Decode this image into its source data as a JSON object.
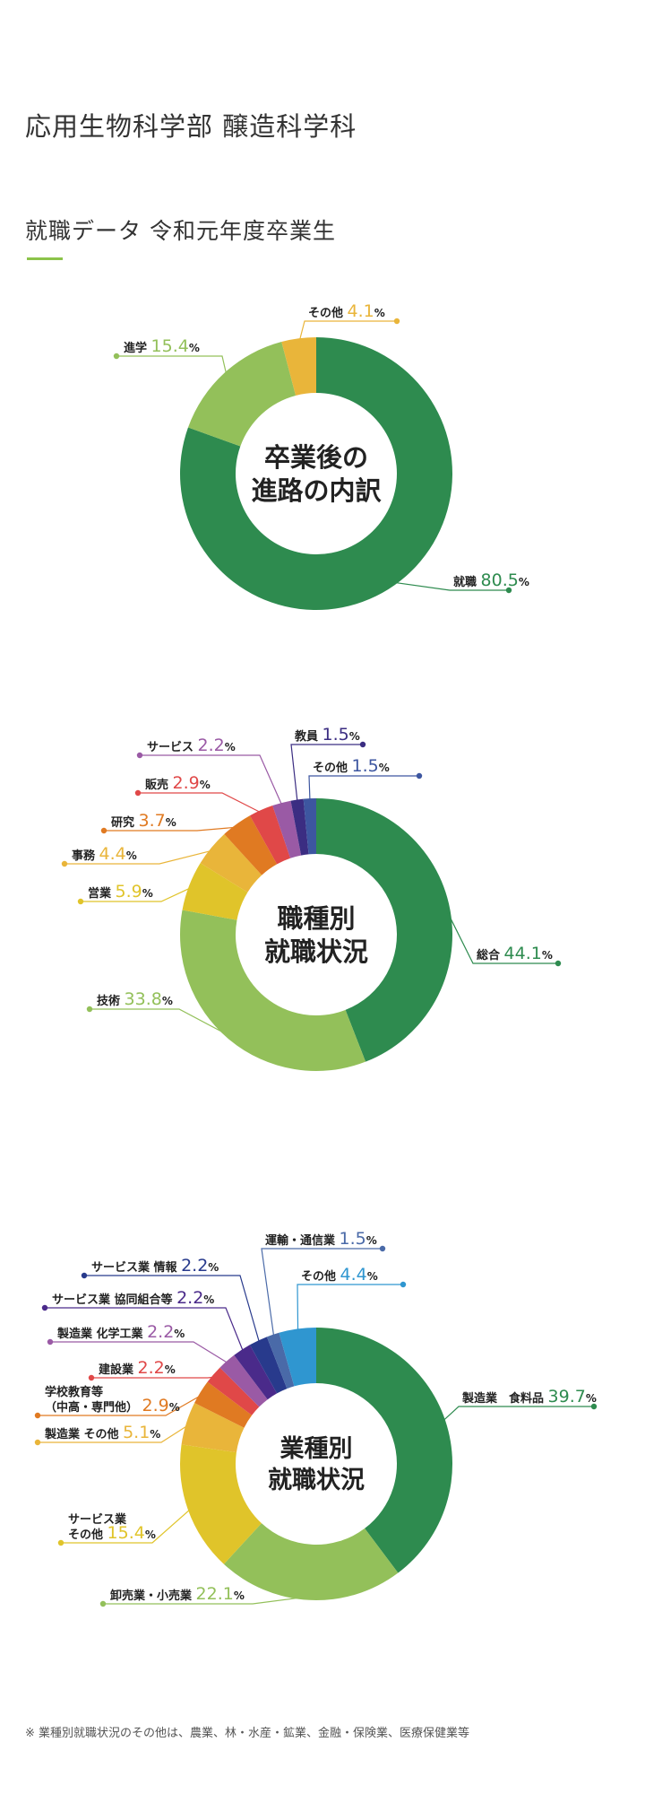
{
  "page": {
    "title": "応用生物科学部 醸造科学科",
    "section_title": "就職データ 令和元年度卒業生",
    "footnote": "※ 業種別就職状況のその他は、農業、林・水産・鉱業、金融・保険業、医療保健業等"
  },
  "chart_data": [
    {
      "type": "pie",
      "center_label": [
        "卒業後の",
        "進路の内訳"
      ],
      "unit": "%",
      "slices": [
        {
          "label": [
            "就職"
          ],
          "value": 80.5,
          "color": "#2e8b4f"
        },
        {
          "label": [
            "進学"
          ],
          "value": 15.4,
          "color": "#93c05a"
        },
        {
          "label": [
            "その他"
          ],
          "value": 4.1,
          "color": "#e9b53a"
        }
      ]
    },
    {
      "type": "pie",
      "center_label": [
        "職種別",
        "就職状況"
      ],
      "unit": "%",
      "slices": [
        {
          "label": [
            "総合"
          ],
          "value": 44.1,
          "color": "#2e8b4f"
        },
        {
          "label": [
            "技術"
          ],
          "value": 33.8,
          "color": "#93c05a"
        },
        {
          "label": [
            "営業"
          ],
          "value": 5.9,
          "color": "#e0c42a"
        },
        {
          "label": [
            "事務"
          ],
          "value": 4.4,
          "color": "#e9b53a"
        },
        {
          "label": [
            "研究"
          ],
          "value": 3.7,
          "color": "#e07a22"
        },
        {
          "label": [
            "販売"
          ],
          "value": 2.9,
          "color": "#e04848"
        },
        {
          "label": [
            "サービス"
          ],
          "value": 2.2,
          "color": "#9a5aa5"
        },
        {
          "label": [
            "教員"
          ],
          "value": 1.5,
          "color": "#3b2d82"
        },
        {
          "label": [
            "その他"
          ],
          "value": 1.5,
          "color": "#3d56a0"
        }
      ]
    },
    {
      "type": "pie",
      "center_label": [
        "業種別",
        "就職状況"
      ],
      "unit": "%",
      "slices": [
        {
          "label": [
            "製造業　食料品"
          ],
          "value": 39.7,
          "color": "#2e8b4f"
        },
        {
          "label": [
            "卸売業・小売業"
          ],
          "value": 22.1,
          "color": "#93c05a"
        },
        {
          "label": [
            "サービス業",
            "その他"
          ],
          "value": 15.4,
          "color": "#e0c42a"
        },
        {
          "label": [
            "製造業 その他"
          ],
          "value": 5.1,
          "color": "#e9b53a"
        },
        {
          "label": [
            "学校教育等",
            "（中高・専門他）"
          ],
          "value": 2.9,
          "color": "#e07a22"
        },
        {
          "label": [
            "建設業"
          ],
          "value": 2.2,
          "color": "#e04848"
        },
        {
          "label": [
            "製造業 化学工業"
          ],
          "value": 2.2,
          "color": "#9a5aa5"
        },
        {
          "label": [
            "サービス業 協同組合等"
          ],
          "value": 2.2,
          "color": "#4a2a8a"
        },
        {
          "label": [
            "サービス業 情報"
          ],
          "value": 2.2,
          "color": "#283a8c"
        },
        {
          "label": [
            "運輸・通信業"
          ],
          "value": 1.5,
          "color": "#4a6aa8"
        },
        {
          "label": [
            "その他"
          ],
          "value": 4.4,
          "color": "#2f96d0"
        }
      ]
    }
  ]
}
